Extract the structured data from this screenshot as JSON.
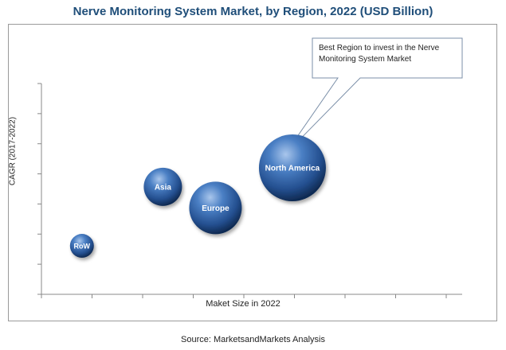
{
  "chart_data": {
    "type": "bubble",
    "title": "Nerve Monitoring System Market, by Region, 2022 (USD Billion)",
    "xlabel": "Maket Size in 2022",
    "ylabel": "CAGR (2017-2022)",
    "xlim": [
      0,
      10
    ],
    "ylim": [
      0,
      10
    ],
    "grid": false,
    "series": [
      {
        "name": "RoW",
        "x": 1,
        "y": 2.3,
        "size": 1.0
      },
      {
        "name": "Asia",
        "x": 3,
        "y": 5.1,
        "size": 1.6
      },
      {
        "name": "Europe",
        "x": 4.3,
        "y": 4.1,
        "size": 2.2
      },
      {
        "name": "North America",
        "x": 6.2,
        "y": 6.0,
        "size": 2.8
      }
    ],
    "annotation": {
      "text_line1": "Best Region to invest in the Nerve",
      "text_line2": "Monitoring System Market",
      "target": "North America"
    },
    "source": "Source: MarketsandMarkets Analysis",
    "colors": {
      "bubble_light": "#7fa8dc",
      "bubble_mid": "#3a6fb5",
      "bubble_dark": "#15335f",
      "title": "#1f4e79"
    }
  }
}
